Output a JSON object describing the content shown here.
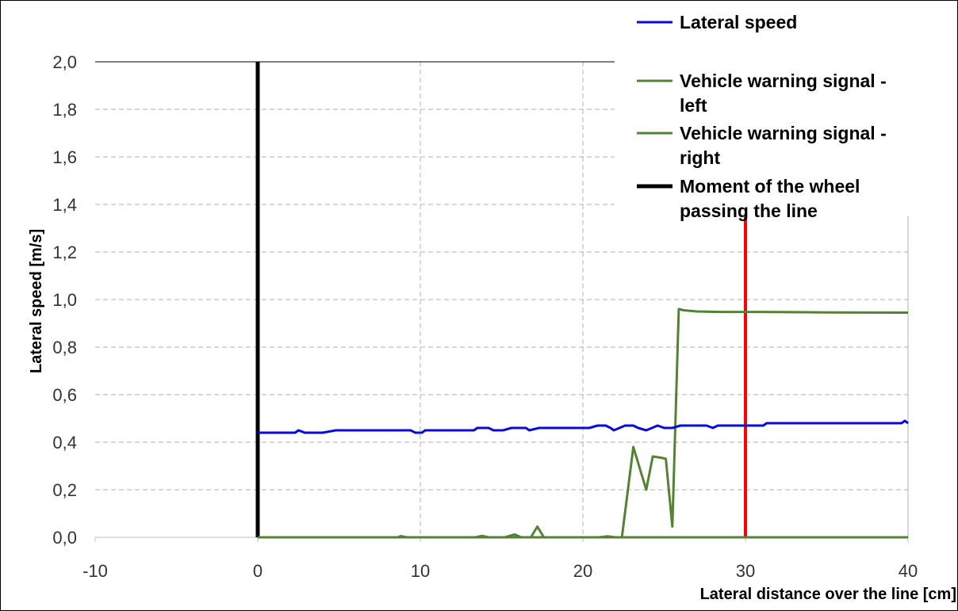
{
  "chart_data": {
    "type": "line",
    "xlabel": "Lateral distance over the line  [cm]",
    "ylabel": "Lateral speed [m/s]",
    "xlim": [
      -10,
      40
    ],
    "ylim": [
      0,
      2.0
    ],
    "x_ticks": [
      "-10",
      "0",
      "10",
      "20",
      "30",
      "40"
    ],
    "y_ticks": [
      "0,0",
      "0,2",
      "0,4",
      "0,6",
      "0,8",
      "1,0",
      "1,2",
      "1,4",
      "1,6",
      "1,8",
      "2,0"
    ],
    "grid": true,
    "legend_position": "top-right",
    "legend": [
      {
        "lines": [
          "Lateral speed"
        ],
        "color": "#0a0ad8",
        "width": 3
      },
      {
        "lines": [
          "Vehicle warning signal -",
          "left"
        ],
        "color": "#548235",
        "width": 3
      },
      {
        "lines": [
          "Vehicle warning signal -",
          "right"
        ],
        "color": "#548235",
        "width": 3
      },
      {
        "lines": [
          "Moment of the wheel",
          "passing the line"
        ],
        "color": "#000000",
        "width": 5
      }
    ],
    "series": [
      {
        "name": "Lateral speed",
        "color": "#0a0ad8",
        "x": [
          0,
          2.3,
          2.5,
          2.9,
          4.0,
          4.8,
          9.4,
          9.7,
          10.1,
          10.3,
          13.3,
          13.5,
          14.2,
          14.5,
          15.1,
          15.6,
          16.5,
          16.7,
          17.3,
          20.4,
          20.9,
          21.4,
          21.7,
          21.9,
          22.6,
          23.1,
          23.4,
          23.9,
          24.6,
          25.0,
          25.5,
          26.0,
          26.6,
          27.6,
          28.0,
          28.3,
          31.1,
          31.3,
          39.6,
          39.8,
          40
        ],
        "y": [
          0.44,
          0.44,
          0.45,
          0.44,
          0.44,
          0.45,
          0.45,
          0.44,
          0.44,
          0.45,
          0.45,
          0.46,
          0.46,
          0.45,
          0.45,
          0.46,
          0.46,
          0.45,
          0.46,
          0.46,
          0.47,
          0.47,
          0.46,
          0.45,
          0.47,
          0.47,
          0.46,
          0.45,
          0.47,
          0.46,
          0.46,
          0.47,
          0.47,
          0.47,
          0.46,
          0.47,
          0.47,
          0.48,
          0.48,
          0.49,
          0.48
        ]
      },
      {
        "name": "Vehicle warning signal - left",
        "color": "#548235",
        "x": [
          0,
          8.6,
          8.8,
          9.2,
          15.2,
          15.8,
          16.2,
          16.8,
          17.2,
          17.6,
          21.2,
          22.4,
          23.1,
          23.9,
          24.3,
          24.8,
          25.1,
          25.5,
          25.9,
          26.2,
          27.0,
          28.5,
          31.0,
          35.0,
          40
        ],
        "y": [
          0.0,
          0.0,
          0.005,
          0.0,
          0.0,
          0.012,
          0.0,
          0.0,
          0.045,
          0.0,
          0.0,
          0.0,
          0.38,
          0.2,
          0.34,
          0.335,
          0.33,
          0.045,
          0.96,
          0.955,
          0.95,
          0.948,
          0.948,
          0.946,
          0.945
        ]
      },
      {
        "name": "Vehicle warning signal - right",
        "color": "#548235",
        "x": [
          0,
          13.4,
          13.8,
          14.2,
          21.0,
          21.5,
          22.0,
          40
        ],
        "y": [
          0.0,
          0.0,
          0.006,
          0.0,
          0.0,
          0.004,
          0.0,
          0.0
        ]
      }
    ],
    "vertical_lines": [
      {
        "name": "Moment of the wheel passing the line",
        "x": 0,
        "color": "#000000"
      },
      {
        "x": 30,
        "color": "#ff0000"
      }
    ]
  }
}
